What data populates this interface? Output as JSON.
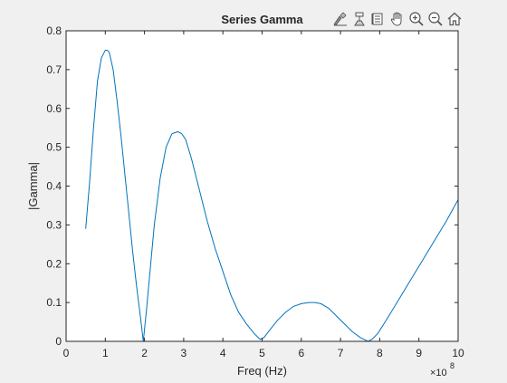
{
  "toolbar": {
    "icons": [
      "brush-edit-icon",
      "data-tip-icon",
      "rotate-icon",
      "pan-hand-icon",
      "zoom-in-icon",
      "zoom-out-icon",
      "home-icon"
    ]
  },
  "colors": {
    "background": "#f0f0f0",
    "axes_background": "#ffffff",
    "line": "#0072bd",
    "axis": "#262626"
  },
  "chart_data": {
    "type": "line",
    "title": "Series Gamma",
    "xlabel": "Freq (Hz)",
    "ylabel": "|Gamma|",
    "x_exponent_label": "×10",
    "x_exponent_power": "8",
    "xlim": [
      0,
      10
    ],
    "ylim": [
      0,
      0.8
    ],
    "xticks": [
      "0",
      "1",
      "2",
      "3",
      "4",
      "5",
      "6",
      "7",
      "8",
      "9",
      "10"
    ],
    "yticks": [
      "0",
      "0.1",
      "0.2",
      "0.3",
      "0.4",
      "0.5",
      "0.6",
      "0.7",
      "0.8"
    ],
    "grid": false,
    "legend": "none",
    "series": [
      {
        "x": [
          0.5,
          0.6,
          0.7,
          0.8,
          0.9,
          1.0,
          1.05,
          1.1,
          1.2,
          1.3,
          1.4,
          1.5,
          1.6,
          1.7,
          1.8,
          1.9,
          1.97,
          2.05,
          2.15,
          2.25,
          2.4,
          2.55,
          2.7,
          2.85,
          2.95,
          3.05,
          3.2,
          3.4,
          3.6,
          3.8,
          4.0,
          4.2,
          4.4,
          4.6,
          4.8,
          4.95,
          5.05,
          5.2,
          5.4,
          5.6,
          5.8,
          6.0,
          6.2,
          6.35,
          6.5,
          6.7,
          6.9,
          7.1,
          7.3,
          7.5,
          7.7,
          7.8,
          7.95,
          8.2,
          8.5,
          8.8,
          9.1,
          9.4,
          9.7,
          10.0
        ],
        "y": [
          0.29,
          0.41,
          0.55,
          0.67,
          0.73,
          0.75,
          0.75,
          0.745,
          0.7,
          0.62,
          0.53,
          0.43,
          0.33,
          0.23,
          0.14,
          0.06,
          0.0,
          0.08,
          0.19,
          0.3,
          0.42,
          0.5,
          0.535,
          0.54,
          0.535,
          0.52,
          0.47,
          0.39,
          0.31,
          0.24,
          0.18,
          0.12,
          0.075,
          0.045,
          0.02,
          0.005,
          0.01,
          0.03,
          0.055,
          0.075,
          0.09,
          0.097,
          0.1,
          0.1,
          0.097,
          0.085,
          0.065,
          0.045,
          0.025,
          0.01,
          0.0,
          0.005,
          0.02,
          0.06,
          0.11,
          0.16,
          0.21,
          0.26,
          0.31,
          0.365
        ]
      }
    ]
  }
}
